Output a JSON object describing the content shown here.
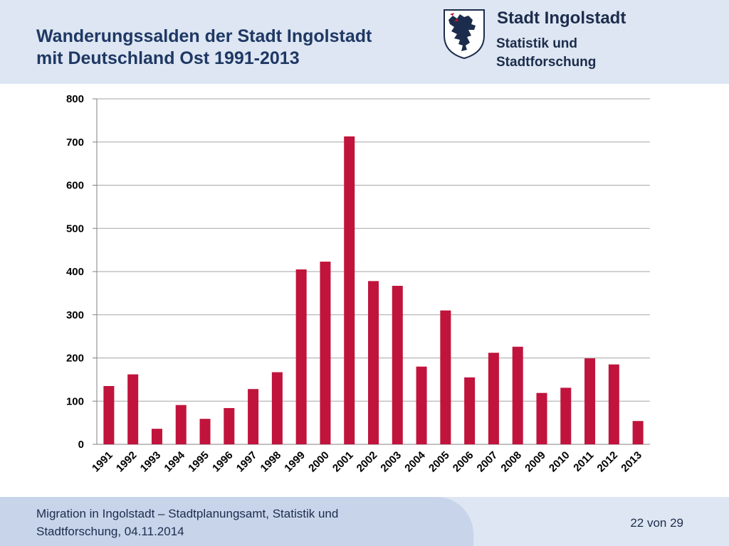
{
  "slide": {
    "title_line1": "Wanderungssalden der Stadt Ingolstadt",
    "title_line2": "mit Deutschland Ost 1991-2013"
  },
  "org": {
    "name": "Stadt Ingolstadt",
    "dept_line1": "Statistik und",
    "dept_line2": "Stadtforschung",
    "logo_icon": "panther-crest-icon"
  },
  "footer": {
    "line1": "Migration in Ingolstadt – Stadtplanungsamt, Statistik und",
    "line2": "Stadtforschung, 04.11.2014",
    "page": "22 von 29"
  },
  "colors": {
    "bar": "#c0143c",
    "header_bg": "#dde6f2",
    "title": "#1f3864",
    "grid": "#a6a6a6"
  },
  "chart_data": {
    "type": "bar",
    "title": "",
    "xlabel": "",
    "ylabel": "",
    "ylim": [
      0,
      800
    ],
    "yticks": [
      0,
      100,
      200,
      300,
      400,
      500,
      600,
      700,
      800
    ],
    "grid": true,
    "legend": "none",
    "categories": [
      "1991",
      "1992",
      "1993",
      "1994",
      "1995",
      "1996",
      "1997",
      "1998",
      "1999",
      "2000",
      "2001",
      "2002",
      "2003",
      "2004",
      "2005",
      "2006",
      "2007",
      "2008",
      "2009",
      "2010",
      "2011",
      "2012",
      "2013"
    ],
    "values": [
      135,
      162,
      36,
      91,
      59,
      84,
      128,
      167,
      405,
      423,
      713,
      378,
      367,
      180,
      310,
      155,
      212,
      226,
      119,
      131,
      199,
      185,
      54
    ]
  }
}
